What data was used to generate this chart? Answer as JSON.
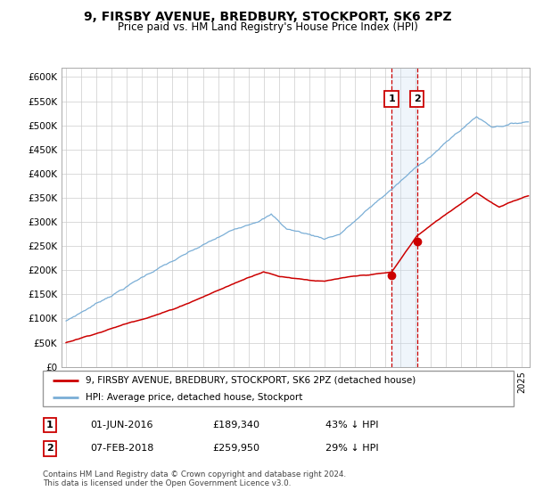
{
  "title": "9, FIRSBY AVENUE, BREDBURY, STOCKPORT, SK6 2PZ",
  "subtitle": "Price paid vs. HM Land Registry's House Price Index (HPI)",
  "legend_label_red": "9, FIRSBY AVENUE, BREDBURY, STOCKPORT, SK6 2PZ (detached house)",
  "legend_label_blue": "HPI: Average price, detached house, Stockport",
  "annotation1_date": "01-JUN-2016",
  "annotation1_price": 189340,
  "annotation1_text": "£189,340",
  "annotation1_pct": "43% ↓ HPI",
  "annotation1_year": 2016.42,
  "annotation2_date": "07-FEB-2018",
  "annotation2_price": 259950,
  "annotation2_text": "£259,950",
  "annotation2_pct": "29% ↓ HPI",
  "annotation2_year": 2018.09,
  "red_color": "#cc0000",
  "blue_color": "#7aaed6",
  "background_color": "#ffffff",
  "plot_bg_color": "#ffffff",
  "grid_color": "#cccccc",
  "annotation_box_color": "#cc0000",
  "shade_color": "#cce0f5",
  "footer": "Contains HM Land Registry data © Crown copyright and database right 2024.\nThis data is licensed under the Open Government Licence v3.0.",
  "ylim_min": 0,
  "ylim_max": 620000,
  "yticks": [
    0,
    50000,
    100000,
    150000,
    200000,
    250000,
    300000,
    350000,
    400000,
    450000,
    500000,
    550000,
    600000
  ],
  "xlim_min": 1994.7,
  "xlim_max": 2025.5
}
